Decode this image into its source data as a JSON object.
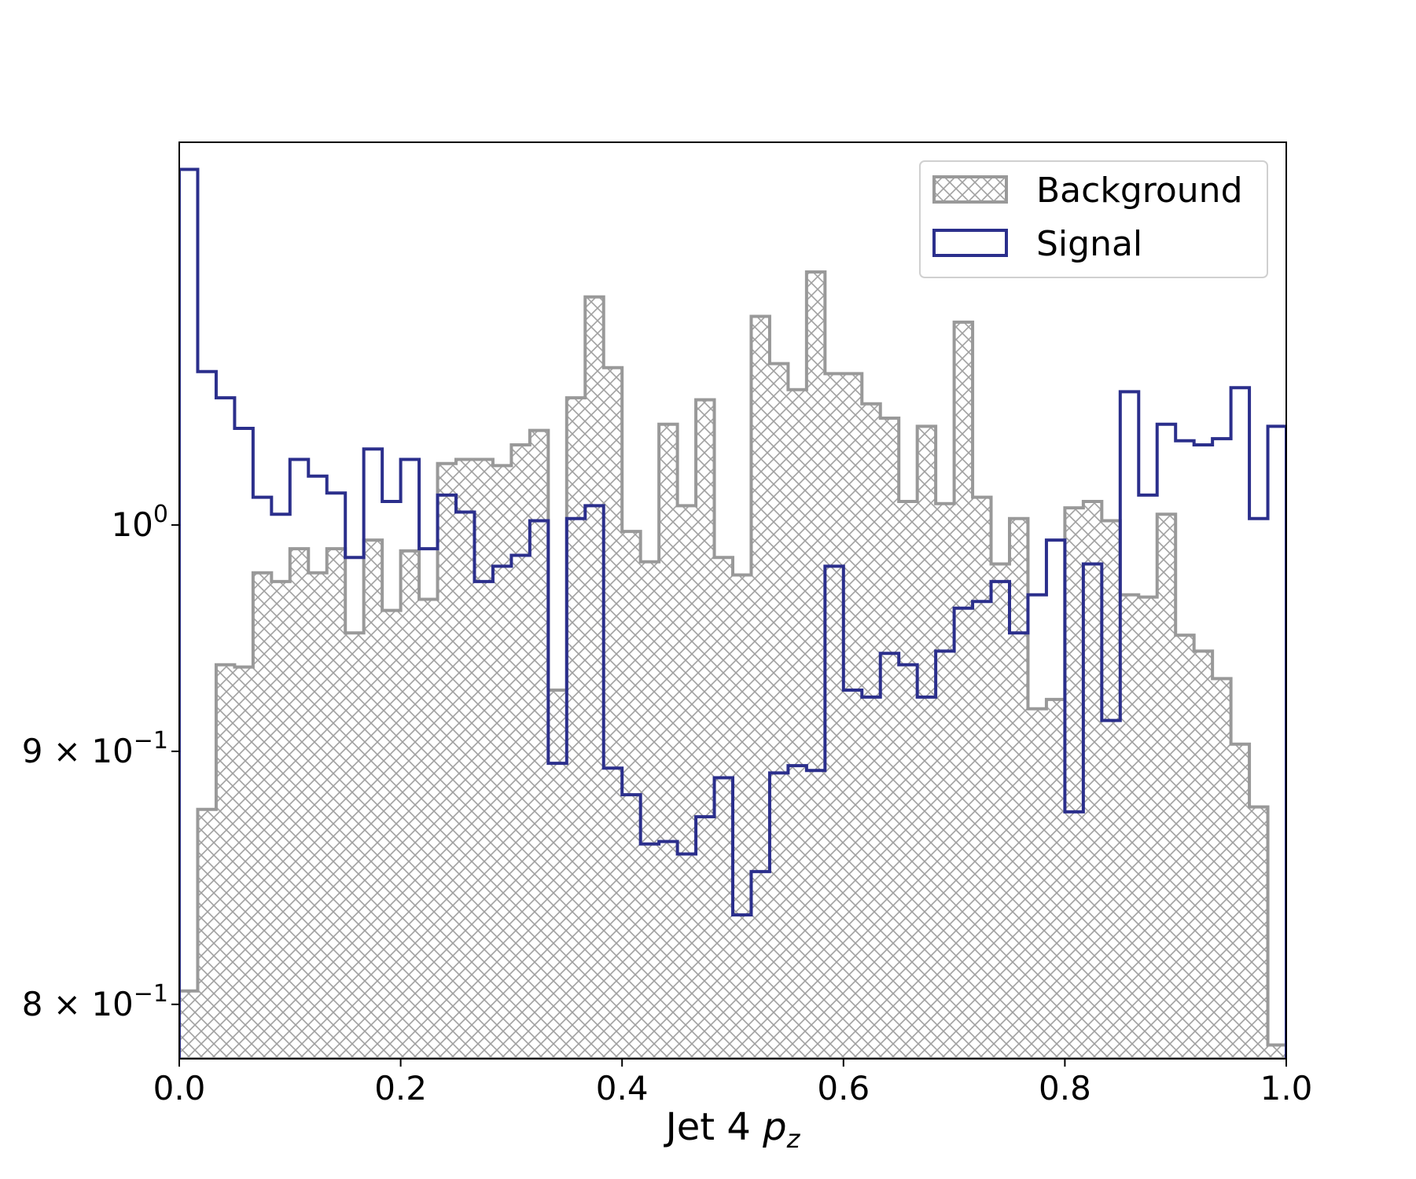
{
  "chart_data": {
    "type": "histogram",
    "x_label_main": "Jet 4 ",
    "x_label_var": "p",
    "x_label_sub": "z",
    "xlim": [
      0.0,
      1.0
    ],
    "ylim": [
      0.78,
      1.195
    ],
    "yscale": "log",
    "grid": false,
    "x_ticks": [
      "0.0",
      "0.2",
      "0.4",
      "0.6",
      "0.8",
      "1.0"
    ],
    "y_ticks": [
      {
        "value": 1.0,
        "mantissa": "",
        "base": "10",
        "exp": "0"
      },
      {
        "value": 0.9,
        "mantissa": "9",
        "base": "10",
        "exp": "−1"
      },
      {
        "value": 0.8,
        "mantissa": "8",
        "base": "10",
        "exp": "−1"
      }
    ],
    "bins": 60,
    "legend_position": "upper right",
    "series": [
      {
        "name": "Background",
        "style": "hatched-step-filled",
        "color": "#999999",
        "values": [
          0.805,
          0.876,
          0.937,
          0.936,
          0.978,
          0.974,
          0.989,
          0.978,
          0.989,
          0.951,
          0.993,
          0.961,
          0.988,
          0.966,
          1.029,
          1.031,
          1.031,
          1.028,
          1.038,
          1.045,
          0.926,
          1.061,
          1.112,
          1.076,
          0.997,
          0.983,
          1.048,
          1.009,
          1.06,
          0.985,
          0.977,
          1.102,
          1.078,
          1.065,
          1.125,
          1.073,
          1.073,
          1.058,
          1.051,
          1.011,
          1.047,
          1.01,
          1.099,
          1.013,
          0.982,
          1.003,
          0.918,
          0.922,
          1.008,
          1.011,
          1.002,
          0.968,
          0.967,
          1.005,
          0.95,
          0.943,
          0.931,
          0.903,
          0.877,
          0.785
        ]
      },
      {
        "name": "Signal",
        "style": "step-outline",
        "color": "#2b2f8c",
        "values": [
          1.18,
          1.074,
          1.061,
          1.046,
          1.013,
          1.005,
          1.031,
          1.023,
          1.015,
          0.985,
          1.036,
          1.011,
          1.031,
          0.989,
          1.014,
          1.006,
          0.974,
          0.981,
          0.986,
          1.002,
          0.895,
          1.003,
          1.009,
          0.893,
          0.882,
          0.862,
          0.863,
          0.858,
          0.873,
          0.889,
          0.834,
          0.851,
          0.891,
          0.894,
          0.892,
          0.981,
          0.926,
          0.923,
          0.942,
          0.937,
          0.923,
          0.943,
          0.962,
          0.965,
          0.974,
          0.951,
          0.968,
          0.993,
          0.875,
          0.982,
          0.913,
          1.064,
          1.014,
          1.048,
          1.04,
          1.038,
          1.041,
          1.066,
          1.003,
          1.047
        ]
      }
    ]
  }
}
